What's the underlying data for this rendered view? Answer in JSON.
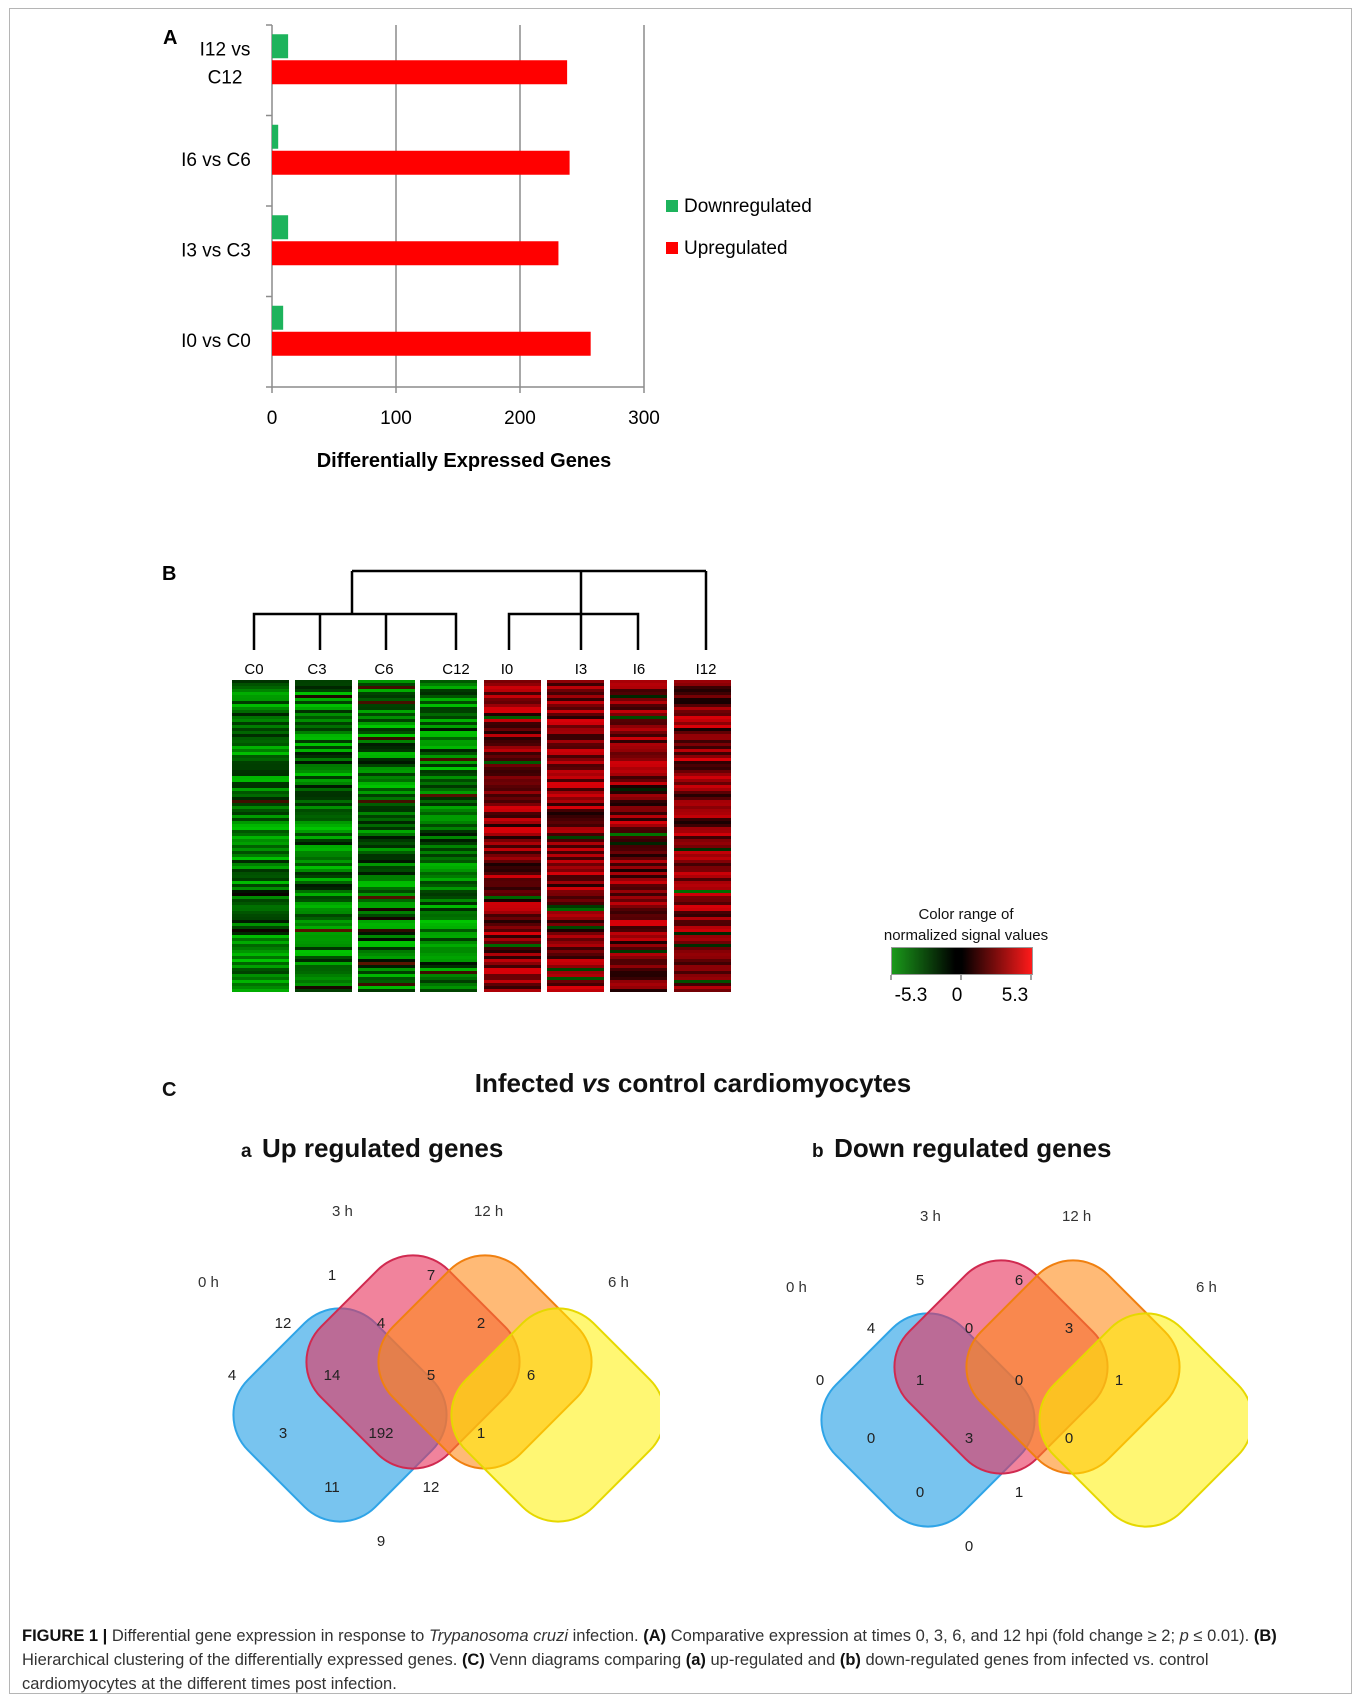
{
  "panelA": {
    "letter": "A",
    "chart_data": {
      "type": "bar",
      "orientation": "horizontal",
      "categories": [
        "I12 vs C12",
        "I6 vs C6",
        "I3 vs C3",
        "I0 vs C0"
      ],
      "category_lines": [
        [
          "I12 vs",
          "C12"
        ],
        [
          "I6 vs C6"
        ],
        [
          "I3 vs C3"
        ],
        [
          "I0 vs C0"
        ]
      ],
      "series": [
        {
          "name": "Downregulated",
          "color": "#1db35c",
          "values": [
            13,
            5,
            13,
            9
          ]
        },
        {
          "name": "Upregulated",
          "color": "#ff0000",
          "values": [
            238,
            240,
            231,
            257
          ]
        }
      ],
      "xlabel": "Differentially Expressed Genes",
      "xlim": [
        0,
        300
      ],
      "xticks": [
        "0",
        "100",
        "200",
        "300"
      ],
      "grid": true,
      "legend_position": "right"
    }
  },
  "panelB": {
    "letter": "B",
    "columns": [
      "C0",
      "C3",
      "C6",
      "C12",
      "I0",
      "I3",
      "I6",
      "I12"
    ],
    "colorbar": {
      "title_line1": "Color range of",
      "title_line2": "normalized signal values",
      "min_label": "-5.3",
      "mid_label": "0",
      "max_label": "5.3",
      "low_color": "#1a9a1a",
      "mid_color": "#000000",
      "high_color": "#ff1a1a"
    }
  },
  "panelC": {
    "letter": "C",
    "title_pre": "Infected ",
    "title_em": "vs",
    "title_post": " control cardiomyocytes",
    "venn_up": {
      "tag": "a",
      "title": "Up regulated genes",
      "set_labels": [
        "0 h",
        "3 h",
        "12 h",
        "6 h"
      ],
      "counts": [
        "1",
        "7",
        "12",
        "4",
        "2",
        "4",
        "6",
        "14",
        "5",
        "3",
        "192",
        "1",
        "11",
        "12",
        "9"
      ]
    },
    "venn_down": {
      "tag": "b",
      "title": "Down regulated genes",
      "set_labels": [
        "0 h",
        "3 h",
        "12 h",
        "6 h"
      ],
      "counts": [
        "5",
        "6",
        "4",
        "0",
        "3",
        "0",
        "1",
        "1",
        "0",
        "0",
        "3",
        "0",
        "0",
        "1",
        "0"
      ]
    }
  },
  "caption": {
    "label": "FIGURE 1 |",
    "t1": " Differential gene expression in response to ",
    "species": "Trypanosoma cruzi",
    "t2": " infection. ",
    "refA": "(A)",
    "t3": " Comparative expression at times 0, 3, 6, and 12 hpi (fold change ≥ 2; ",
    "p": "p",
    "t4": " ≤ 0.01). ",
    "refB": "(B)",
    "t5": " Hierarchical clustering of the differentially expressed genes. ",
    "refC": "(C)",
    "t6": " Venn diagrams comparing ",
    "refa": "(a)",
    "t7": " up-regulated and ",
    "refb": "(b)",
    "t8": " down-regulated genes from infected vs. control cardiomyocytes at the different times post infection."
  }
}
